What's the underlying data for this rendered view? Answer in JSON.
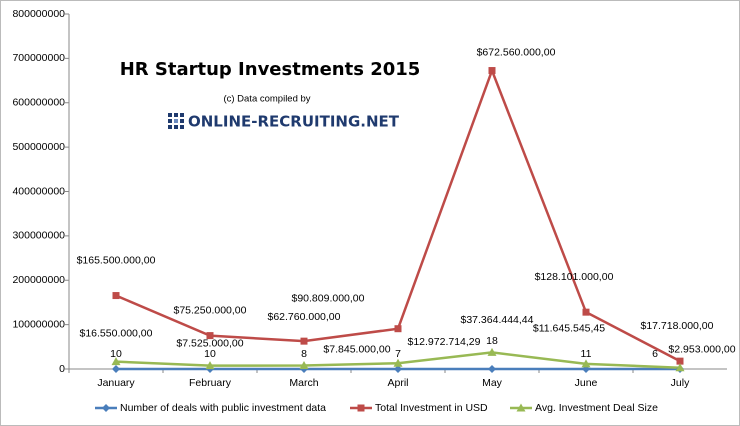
{
  "chart_data": {
    "type": "line",
    "title": "HR Startup Investments 2015",
    "credit": "(c) Data compiled by",
    "brand": "ONLINE-RECRUITING.NET",
    "categories": [
      "January",
      "February",
      "March",
      "April",
      "May",
      "June",
      "July"
    ],
    "ylim": [
      0,
      800000000
    ],
    "yticks": [
      0,
      100000000,
      200000000,
      300000000,
      400000000,
      500000000,
      600000000,
      700000000,
      800000000
    ],
    "grid": false,
    "legend": "bottom",
    "series": [
      {
        "name": "Number of deals with public investment data",
        "color": "#4a7ebb",
        "marker": "diamond",
        "values": [
          10,
          10,
          8,
          7,
          18,
          11,
          6
        ]
      },
      {
        "name": "Total Investment in USD",
        "color": "#be4b48",
        "marker": "square",
        "values": [
          165500000,
          75250000,
          62760000,
          90809000,
          672560000,
          128101000,
          17718000
        ],
        "value_labels": [
          "$165.500.000,00",
          "$75.250.000,00",
          "$62.760.000,00",
          "$90.809.000,00",
          "$672.560.000,00",
          "$128.101.000,00",
          "$17.718.000,00"
        ]
      },
      {
        "name": "Avg. Investment Deal Size",
        "color": "#98b954",
        "marker": "triangle",
        "values": [
          16550000,
          7525000,
          7845000,
          12972714.29,
          37364444.44,
          11645545.45,
          2953000
        ],
        "value_labels": [
          "$16.550.000,00",
          "$7.525.000,00",
          "$7.845.000,00",
          "$12.972.714,29",
          "$37.364.444,44",
          "$11.645.545,45",
          "$2.953.000,00"
        ]
      }
    ]
  }
}
